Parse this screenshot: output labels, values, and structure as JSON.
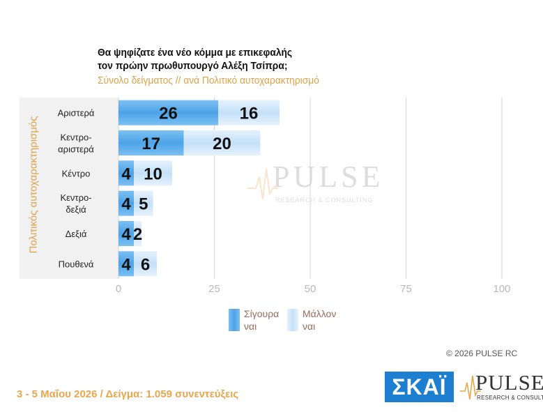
{
  "title_line1": "Θα ψηφίζατε ένα νέο κόμμα με επικεφαλής",
  "title_line2": "τον πρώην πρωθυπουργό Αλέξη Τσίπρα;",
  "subtitle": "Σύνολο δείγματος // ανά Πολιτικό    αυτοχαρακτηρισμό",
  "copyright": "©  2026  PULSE RC",
  "footer": "3 - 5  Μαΐου 2026  /  Δείγμα:  1.059 συνεντεύξεις",
  "logos": {
    "skai": "ΣΚΑΪ",
    "pulse": "PULSE",
    "pulse_sub": "RESEARCH & CONSULTING"
  },
  "watermark": {
    "name": "PULSE",
    "sub": "RESEARCH & CONSULTING"
  },
  "colors": {
    "series_sure": "#4da3e8",
    "series_likely": "#cfe6fa",
    "accent_orange": "#e0a24a",
    "skai_blue": "#1e7fd0"
  },
  "chart_data": {
    "type": "bar",
    "orientation": "horizontal",
    "stacked": true,
    "title": "Θα ψηφίζατε ένα νέο κόμμα με επικεφαλής τον πρώην πρωθυπουργό Αλέξη Τσίπρα;",
    "subtitle": "Σύνολο δείγματος // ανά Πολιτικό    αυτοχαρακτηρισμό",
    "ylabel": "Πολιτικός  αυτοχαρακτηρισμός",
    "xlabel": "",
    "xlim": [
      0,
      100
    ],
    "xticks": [
      0,
      25,
      50,
      75,
      100
    ],
    "grid": true,
    "legend_position": "bottom",
    "categories": [
      [
        "Αριστερά"
      ],
      [
        "Κεντρο-",
        "αριστερά"
      ],
      [
        "Κέντρο"
      ],
      [
        "Κεντρο-",
        "δεξιά"
      ],
      [
        "Δεξιά"
      ],
      [
        "Πουθενά"
      ]
    ],
    "series": [
      {
        "name": "Σίγουρα ναι",
        "legend_lines": [
          "Σίγουρα",
          "ναι"
        ],
        "values": [
          26,
          17,
          4,
          4,
          4,
          4
        ]
      },
      {
        "name": "Μάλλον ναι",
        "legend_lines": [
          "Μάλλον",
          "ναι"
        ],
        "values": [
          16,
          20,
          10,
          5,
          2,
          6
        ]
      }
    ]
  }
}
